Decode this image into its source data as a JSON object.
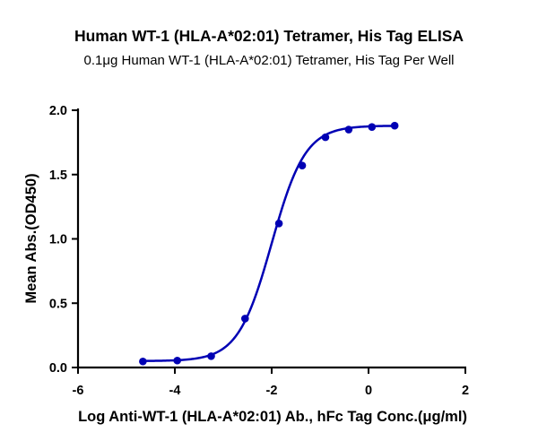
{
  "chart_data": {
    "type": "line",
    "title": "Human WT-1 (HLA-A*02:01) Tetramer, His Tag ELISA",
    "subtitle": "0.1μg Human WT-1 (HLA-A*02:01) Tetramer, His Tag Per Well",
    "xlabel": "Log Anti-WT-1 (HLA-A*02:01) Ab., hFc Tag Conc.(μg/ml)",
    "ylabel": "Mean Abs.(OD450)",
    "xlim": [
      -6,
      2
    ],
    "ylim": [
      0,
      2.0
    ],
    "xticks": [
      "-6",
      "-4",
      "-2",
      "0",
      "2"
    ],
    "xtick_values": [
      -6,
      -4,
      -2,
      0,
      2
    ],
    "yticks": [
      "0.0",
      "0.5",
      "1.0",
      "1.5",
      "2.0"
    ],
    "ytick_values": [
      0,
      0.5,
      1.0,
      1.5,
      2.0
    ],
    "grid": false,
    "series": [
      {
        "name": "Human WT-1 (HLA-A*02:01) Tetramer, His Tag",
        "color": "#0000b4",
        "x": [
          -4.66,
          -3.95,
          -3.25,
          -2.55,
          -1.85,
          -1.37,
          -0.89,
          -0.41,
          0.07,
          0.54
        ],
        "y": [
          0.047,
          0.054,
          0.088,
          0.38,
          1.12,
          1.57,
          1.79,
          1.85,
          1.87,
          1.88
        ],
        "fit": {
          "model": "4PL",
          "bottom": 0.05,
          "top": 1.88,
          "logEC50": -2.0,
          "hill": 1.25
        }
      }
    ]
  }
}
